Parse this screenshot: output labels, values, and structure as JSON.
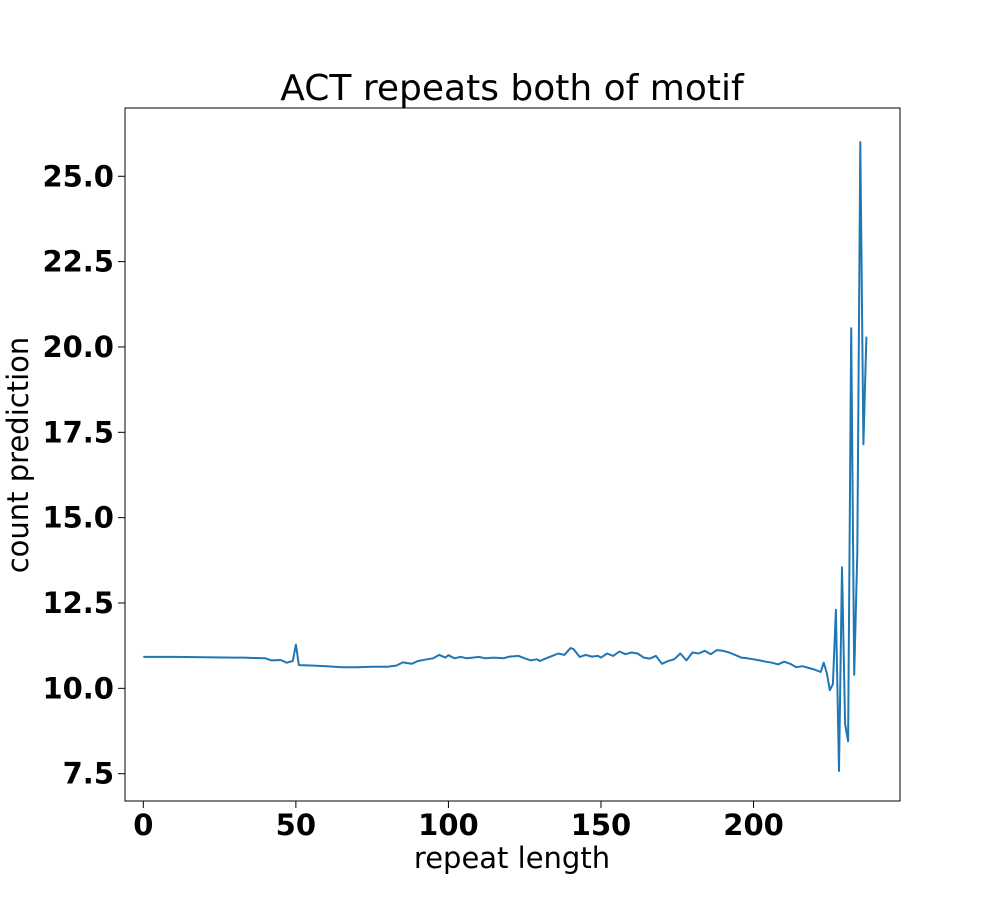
{
  "chart_data": {
    "type": "line",
    "title": "ACT repeats both of motif",
    "xlabel": "repeat length",
    "ylabel": "count prediction",
    "xlim": [
      -6,
      248
    ],
    "ylim": [
      6.7,
      27.0
    ],
    "xticks": [
      0,
      50,
      100,
      150,
      200
    ],
    "xtick_labels": [
      "0",
      "50",
      "100",
      "150",
      "200"
    ],
    "yticks": [
      7.5,
      10.0,
      12.5,
      15.0,
      17.5,
      20.0,
      22.5,
      25.0
    ],
    "ytick_labels": [
      "7.5",
      "10.0",
      "12.5",
      "15.0",
      "17.5",
      "20.0",
      "22.5",
      "25.0"
    ],
    "grid": false,
    "color": "#1f77b4",
    "series": [
      {
        "x": [
          0,
          10,
          20,
          30,
          33,
          36,
          40,
          42,
          45,
          47,
          49,
          50,
          51,
          55,
          60,
          65,
          70,
          75,
          80,
          83,
          85,
          88,
          90,
          93,
          95,
          97,
          99,
          100,
          102,
          104,
          106,
          108,
          110,
          112,
          115,
          118,
          120,
          123,
          125,
          127,
          129,
          130,
          132,
          134,
          136,
          138,
          140,
          141,
          143,
          145,
          147,
          149,
          150,
          152,
          154,
          156,
          158,
          160,
          162,
          164,
          166,
          168,
          170,
          172,
          174,
          176,
          178,
          180,
          182,
          184,
          186,
          188,
          190,
          192,
          194,
          196,
          198,
          200,
          202,
          204,
          206,
          208,
          210,
          212,
          214,
          216,
          218,
          220,
          222,
          223,
          224,
          225,
          226,
          227,
          228,
          229,
          230,
          231,
          232,
          233,
          234,
          235,
          236,
          237
        ],
        "y": [
          10.92,
          10.92,
          10.91,
          10.9,
          10.9,
          10.89,
          10.88,
          10.82,
          10.83,
          10.75,
          10.8,
          11.28,
          10.68,
          10.67,
          10.65,
          10.62,
          10.62,
          10.63,
          10.63,
          10.67,
          10.76,
          10.72,
          10.8,
          10.85,
          10.88,
          10.98,
          10.9,
          10.97,
          10.88,
          10.92,
          10.88,
          10.9,
          10.92,
          10.88,
          10.9,
          10.88,
          10.93,
          10.95,
          10.88,
          10.82,
          10.85,
          10.8,
          10.88,
          10.95,
          11.02,
          10.98,
          11.18,
          11.15,
          10.92,
          10.98,
          10.93,
          10.95,
          10.9,
          11.02,
          10.95,
          11.08,
          11.0,
          11.05,
          11.02,
          10.9,
          10.87,
          10.95,
          10.72,
          10.8,
          10.85,
          11.02,
          10.82,
          11.05,
          11.02,
          11.1,
          11.0,
          11.12,
          11.1,
          11.05,
          10.98,
          10.9,
          10.88,
          10.85,
          10.82,
          10.78,
          10.75,
          10.7,
          10.78,
          10.72,
          10.62,
          10.65,
          10.6,
          10.55,
          10.48,
          10.75,
          10.45,
          9.95,
          10.12,
          12.3,
          7.58,
          13.55,
          8.95,
          8.45,
          20.55,
          10.4,
          13.95,
          26.0,
          17.15,
          20.3
        ]
      }
    ]
  }
}
